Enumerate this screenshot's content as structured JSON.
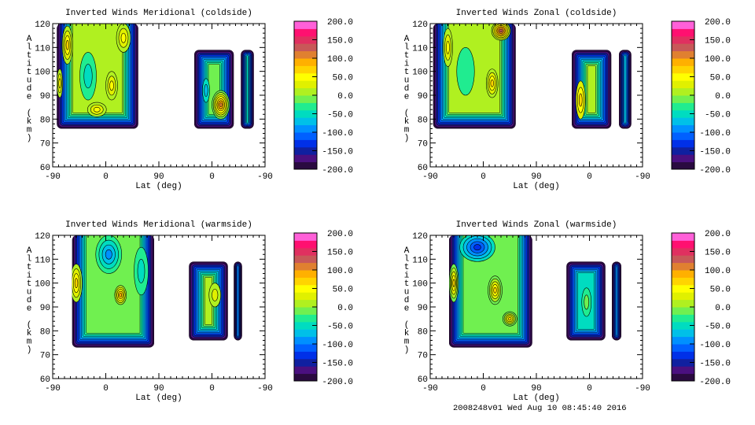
{
  "footer": "2008248v01 Wed Aug 10 08:45:40 2016",
  "colormap": [
    "#2a0a40",
    "#4a1080",
    "#1020a0",
    "#0030e8",
    "#0060ff",
    "#0090ff",
    "#00c0e8",
    "#00dcc0",
    "#20ec90",
    "#70f050",
    "#b0f020",
    "#e0f000",
    "#ffff00",
    "#ffd400",
    "#ffb000",
    "#e08030",
    "#c85858",
    "#e03060",
    "#ff1070",
    "#ff60d8"
  ],
  "chart_data": [
    {
      "type": "heatmap",
      "title": "Inverted Winds Meridional (coldside)",
      "xlabel": "Lat (deg)",
      "ylabel": "Altitude (km)",
      "xticks": [
        "-90",
        "0",
        "90",
        "0",
        "-90"
      ],
      "yticks": [
        "60",
        "70",
        "80",
        "90",
        "100",
        "110",
        "120"
      ],
      "ylim": [
        60,
        120
      ],
      "colorbar": {
        "range": [
          -200,
          200
        ],
        "labels": [
          "200.0",
          "150.0",
          "100.0",
          "50.0",
          "0.0",
          "-50.0",
          "-100.0",
          "-150.0",
          "-200.0"
        ]
      },
      "blocks": [
        {
          "u": [
            7,
            145
          ],
          "alt": [
            76,
            120
          ],
          "base": -10,
          "features": [
            {
              "u": 25,
              "a": 111,
              "ru": 9,
              "ra": 8,
              "v": 60
            },
            {
              "u": 120,
              "a": 114,
              "ru": 12,
              "ra": 6,
              "v": 50
            },
            {
              "u": 60,
              "a": 98,
              "ru": 14,
              "ra": 10,
              "v": -40
            },
            {
              "u": 100,
              "a": 94,
              "ru": 10,
              "ra": 6,
              "v": 40
            },
            {
              "u": 75,
              "a": 84,
              "ru": 16,
              "ra": 3,
              "v": 50
            },
            {
              "u": 12,
              "a": 95,
              "ru": 5,
              "ra": 6,
              "v": 50
            }
          ]
        },
        {
          "u": [
            240,
            307
          ],
          "alt": [
            76,
            109
          ],
          "base": -30,
          "features": [
            {
              "u": 285,
              "a": 86,
              "ru": 15,
              "ra": 6,
              "v": 110
            },
            {
              "u": 260,
              "a": 92,
              "ru": 6,
              "ra": 5,
              "v": -60
            }
          ]
        },
        {
          "u": [
            319,
            341
          ],
          "alt": [
            76,
            109
          ],
          "base": -70,
          "features": []
        }
      ]
    },
    {
      "type": "heatmap",
      "title": "Inverted Winds Zonal (coldside)",
      "xlabel": "Lat (deg)",
      "ylabel": "Altitude (km)",
      "xticks": [
        "-90",
        "0",
        "90",
        "0",
        "-90"
      ],
      "yticks": [
        "60",
        "70",
        "80",
        "90",
        "100",
        "110",
        "120"
      ],
      "ylim": [
        60,
        120
      ],
      "colorbar": {
        "range": [
          -200,
          200
        ],
        "labels": [
          "200.0",
          "150.0",
          "100.0",
          "50.0",
          "0.0",
          "-50.0",
          "-100.0",
          "-150.0",
          "-200.0"
        ]
      },
      "blocks": [
        {
          "u": [
            5,
            145
          ],
          "alt": [
            76,
            120
          ],
          "base": -10,
          "features": [
            {
              "u": 120,
              "a": 117,
              "ru": 16,
              "ra": 4,
              "v": 120
            },
            {
              "u": 105,
              "a": 95,
              "ru": 10,
              "ra": 6,
              "v": 60
            },
            {
              "u": 30,
              "a": 110,
              "ru": 8,
              "ra": 8,
              "v": 40
            },
            {
              "u": 60,
              "a": 100,
              "ru": 15,
              "ra": 10,
              "v": -30
            }
          ]
        },
        {
          "u": [
            240,
            307
          ],
          "alt": [
            76,
            109
          ],
          "base": 0,
          "features": [
            {
              "u": 255,
              "a": 88,
              "ru": 8,
              "ra": 8,
              "v": 60
            }
          ]
        },
        {
          "u": [
            320,
            341
          ],
          "alt": [
            76,
            109
          ],
          "base": -90,
          "features": []
        }
      ]
    },
    {
      "type": "heatmap",
      "title": "Inverted Winds Meridional (warmside)",
      "xlabel": "Lat (deg)",
      "ylabel": "Altitude (km)",
      "xticks": [
        "-90",
        "0",
        "90",
        "0",
        "-90"
      ],
      "yticks": [
        "60",
        "70",
        "80",
        "90",
        "100",
        "110",
        "120"
      ],
      "ylim": [
        60,
        120
      ],
      "colorbar": {
        "range": [
          -200,
          200
        ],
        "labels": [
          "200.0",
          "150.0",
          "100.0",
          "50.0",
          "0.0",
          "-50.0",
          "-100.0",
          "-150.0",
          "-200.0"
        ]
      },
      "blocks": [
        {
          "u": [
            33,
            172
          ],
          "alt": [
            73,
            120
          ],
          "base": -20,
          "features": [
            {
              "u": 40,
              "a": 100,
              "ru": 10,
              "ra": 8,
              "v": 60
            },
            {
              "u": 115,
              "a": 95,
              "ru": 10,
              "ra": 4,
              "v": 70
            },
            {
              "u": 95,
              "a": 112,
              "ru": 22,
              "ra": 8,
              "v": -90
            },
            {
              "u": 150,
              "a": 105,
              "ru": 12,
              "ra": 10,
              "v": -50
            }
          ]
        },
        {
          "u": [
            231,
            297
          ],
          "alt": [
            76,
            109
          ],
          "base": -10,
          "features": [
            {
              "u": 275,
              "a": 95,
              "ru": 10,
              "ra": 5,
              "v": 30
            }
          ]
        },
        {
          "u": [
            307,
            321
          ],
          "alt": [
            76,
            109
          ],
          "base": -100,
          "features": []
        }
      ]
    },
    {
      "type": "heatmap",
      "title": "Inverted Winds Zonal (warmside)",
      "xlabel": "Lat (deg)",
      "ylabel": "Altitude (km)",
      "xticks": [
        "-90",
        "0",
        "90",
        "0",
        "-90"
      ],
      "yticks": [
        "60",
        "70",
        "80",
        "90",
        "100",
        "110",
        "120"
      ],
      "ylim": [
        60,
        120
      ],
      "colorbar": {
        "range": [
          -200,
          200
        ],
        "labels": [
          "200.0",
          "150.0",
          "100.0",
          "50.0",
          "0.0",
          "-50.0",
          "-100.0",
          "-150.0",
          "-200.0"
        ]
      },
      "blocks": [
        {
          "u": [
            32,
            173
          ],
          "alt": [
            73,
            120
          ],
          "base": -30,
          "features": [
            {
              "u": 40,
              "a": 100,
              "ru": 8,
              "ra": 8,
              "v": 60
            },
            {
              "u": 110,
              "a": 97,
              "ru": 12,
              "ra": 6,
              "v": 60
            },
            {
              "u": 135,
              "a": 85,
              "ru": 12,
              "ra": 3,
              "v": 70
            },
            {
              "u": 80,
              "a": 115,
              "ru": 30,
              "ra": 6,
              "v": -120
            }
          ]
        },
        {
          "u": [
            231,
            297
          ],
          "alt": [
            76,
            109
          ],
          "base": -60,
          "features": [
            {
              "u": 265,
              "a": 92,
              "ru": 8,
              "ra": 6,
              "v": -20
            }
          ]
        },
        {
          "u": [
            308,
            324
          ],
          "alt": [
            76,
            109
          ],
          "base": -100,
          "features": []
        }
      ]
    }
  ]
}
